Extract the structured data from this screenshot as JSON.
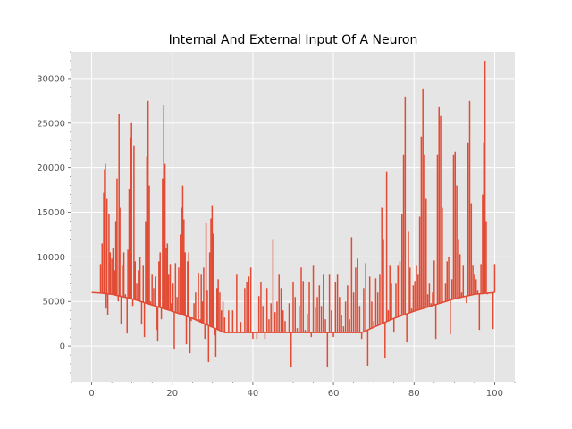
{
  "chart_data": {
    "type": "line",
    "title": "Internal And External Input Of A Neuron",
    "xlabel": "",
    "ylabel": "",
    "xlim": [
      -5,
      105
    ],
    "ylim": [
      -4000,
      33000
    ],
    "xticks": [
      0,
      20,
      40,
      60,
      80,
      100
    ],
    "yticks": [
      0,
      5000,
      10000,
      15000,
      20000,
      25000,
      30000
    ],
    "grid": true,
    "background": "#e5e5e5",
    "series": [
      {
        "color": "#e24a33",
        "baseline": {
          "x": [
            0,
            2,
            5,
            10,
            15,
            20,
            25,
            30,
            33,
            40,
            50,
            60,
            67,
            70,
            75,
            80,
            85,
            90,
            95,
            100
          ],
          "y": [
            6000,
            5950,
            5800,
            5300,
            4600,
            3900,
            3100,
            2100,
            1500,
            1500,
            1500,
            1500,
            1500,
            2100,
            3100,
            3900,
            4600,
            5300,
            5800,
            6000
          ]
        },
        "spikes": [
          [
            2.2,
            9200
          ],
          [
            2.6,
            11500
          ],
          [
            3.0,
            17200
          ],
          [
            3.2,
            19800
          ],
          [
            3.4,
            20500
          ],
          [
            3.6,
            4200
          ],
          [
            3.8,
            16500
          ],
          [
            4.0,
            3500
          ],
          [
            4.3,
            14800
          ],
          [
            4.6,
            10500
          ],
          [
            5.0,
            9800
          ],
          [
            5.3,
            11000
          ],
          [
            5.7,
            8500
          ],
          [
            6.0,
            14000
          ],
          [
            6.3,
            18800
          ],
          [
            6.6,
            5000
          ],
          [
            6.8,
            26000
          ],
          [
            7.0,
            15500
          ],
          [
            7.3,
            2500
          ],
          [
            7.6,
            9000
          ],
          [
            8.0,
            10500
          ],
          [
            8.4,
            5800
          ],
          [
            8.8,
            1400
          ],
          [
            9.0,
            10800
          ],
          [
            9.3,
            17600
          ],
          [
            9.6,
            23400
          ],
          [
            9.9,
            25000
          ],
          [
            10.2,
            4500
          ],
          [
            10.5,
            22500
          ],
          [
            10.8,
            9500
          ],
          [
            11.2,
            7000
          ],
          [
            11.6,
            8500
          ],
          [
            12.0,
            10000
          ],
          [
            12.4,
            2400
          ],
          [
            12.8,
            9000
          ],
          [
            13.1,
            1000
          ],
          [
            13.4,
            14000
          ],
          [
            13.7,
            21200
          ],
          [
            14.0,
            27500
          ],
          [
            14.3,
            18000
          ],
          [
            14.6,
            5000
          ],
          [
            15.0,
            8000
          ],
          [
            15.4,
            6500
          ],
          [
            15.8,
            7800
          ],
          [
            16.1,
            1800
          ],
          [
            16.4,
            500
          ],
          [
            16.7,
            9500
          ],
          [
            17.0,
            10500
          ],
          [
            17.3,
            3000
          ],
          [
            17.6,
            18800
          ],
          [
            17.9,
            27000
          ],
          [
            18.2,
            20500
          ],
          [
            18.5,
            11000
          ],
          [
            18.8,
            11500
          ],
          [
            19.1,
            8000
          ],
          [
            19.5,
            9200
          ],
          [
            19.8,
            4800
          ],
          [
            20.2,
            7000
          ],
          [
            20.5,
            -400
          ],
          [
            20.8,
            9300
          ],
          [
            21.2,
            5500
          ],
          [
            21.6,
            8800
          ],
          [
            22.0,
            12500
          ],
          [
            22.3,
            15500
          ],
          [
            22.6,
            18000
          ],
          [
            22.9,
            14200
          ],
          [
            23.2,
            10500
          ],
          [
            23.5,
            200
          ],
          [
            23.8,
            9500
          ],
          [
            24.1,
            10500
          ],
          [
            24.4,
            -800
          ],
          [
            24.7,
            2800
          ],
          [
            25.0,
            3200
          ],
          [
            25.4,
            4800
          ],
          [
            25.8,
            6000
          ],
          [
            26.1,
            3000
          ],
          [
            26.5,
            8200
          ],
          [
            26.9,
            3000
          ],
          [
            27.2,
            8000
          ],
          [
            27.5,
            5000
          ],
          [
            27.8,
            8800
          ],
          [
            28.1,
            800
          ],
          [
            28.4,
            13800
          ],
          [
            28.7,
            6200
          ],
          [
            29.0,
            -1800
          ],
          [
            29.3,
            10500
          ],
          [
            29.6,
            14300
          ],
          [
            29.9,
            15800
          ],
          [
            30.2,
            12600
          ],
          [
            30.5,
            1200
          ],
          [
            30.8,
            -1200
          ],
          [
            31.1,
            6500
          ],
          [
            31.4,
            7500
          ],
          [
            31.8,
            6000
          ],
          [
            32.2,
            4000
          ],
          [
            32.6,
            5000
          ],
          [
            33.0,
            3200
          ],
          [
            34.0,
            4000
          ],
          [
            35.0,
            4000
          ],
          [
            36.0,
            8000
          ],
          [
            37.0,
            2700
          ],
          [
            38.0,
            6500
          ],
          [
            38.5,
            7200
          ],
          [
            39.0,
            7800
          ],
          [
            39.5,
            8800
          ],
          [
            40.0,
            800
          ],
          [
            40.5,
            1500
          ],
          [
            41.0,
            800
          ],
          [
            41.5,
            5600
          ],
          [
            42.0,
            7200
          ],
          [
            42.5,
            4500
          ],
          [
            43.0,
            800
          ],
          [
            43.5,
            6500
          ],
          [
            44.0,
            3000
          ],
          [
            44.5,
            4800
          ],
          [
            45.0,
            12000
          ],
          [
            45.5,
            3800
          ],
          [
            46.0,
            5000
          ],
          [
            46.5,
            8000
          ],
          [
            47.0,
            6500
          ],
          [
            47.5,
            4000
          ],
          [
            48.0,
            2800
          ],
          [
            48.5,
            1500
          ],
          [
            49.0,
            4800
          ],
          [
            49.5,
            -2400
          ],
          [
            50.0,
            7200
          ],
          [
            50.5,
            5500
          ],
          [
            51.0,
            2000
          ],
          [
            51.5,
            4500
          ],
          [
            52.0,
            8800
          ],
          [
            52.5,
            7300
          ],
          [
            53.0,
            1800
          ],
          [
            53.5,
            3600
          ],
          [
            54.0,
            7200
          ],
          [
            54.5,
            1000
          ],
          [
            55.0,
            9000
          ],
          [
            55.5,
            4300
          ],
          [
            56.0,
            5500
          ],
          [
            56.5,
            6800
          ],
          [
            57.0,
            4500
          ],
          [
            57.5,
            8000
          ],
          [
            58.0,
            3000
          ],
          [
            58.5,
            -2400
          ],
          [
            59.0,
            8000
          ],
          [
            59.5,
            4000
          ],
          [
            60.0,
            1000
          ],
          [
            60.5,
            7200
          ],
          [
            61.0,
            8000
          ],
          [
            61.5,
            5500
          ],
          [
            62.0,
            3500
          ],
          [
            62.5,
            2200
          ],
          [
            63.0,
            5000
          ],
          [
            63.5,
            6800
          ],
          [
            64.0,
            3000
          ],
          [
            64.5,
            12200
          ],
          [
            65.0,
            6000
          ],
          [
            65.5,
            8800
          ],
          [
            66.0,
            9800
          ],
          [
            66.5,
            4500
          ],
          [
            67.0,
            800
          ],
          [
            67.5,
            6500
          ],
          [
            68.0,
            9300
          ],
          [
            68.5,
            -2200
          ],
          [
            69.0,
            7800
          ],
          [
            69.5,
            5000
          ],
          [
            70.0,
            2800
          ],
          [
            70.5,
            7600
          ],
          [
            71.0,
            6000
          ],
          [
            71.5,
            8000
          ],
          [
            72.0,
            15500
          ],
          [
            72.4,
            12000
          ],
          [
            72.8,
            -1400
          ],
          [
            73.2,
            19600
          ],
          [
            73.6,
            4000
          ],
          [
            74.0,
            9000
          ],
          [
            74.4,
            7000
          ],
          [
            75.0,
            1500
          ],
          [
            75.5,
            7000
          ],
          [
            76.0,
            9000
          ],
          [
            76.5,
            9500
          ],
          [
            77.0,
            14800
          ],
          [
            77.4,
            21500
          ],
          [
            77.8,
            28000
          ],
          [
            78.2,
            400
          ],
          [
            78.6,
            12800
          ],
          [
            79.0,
            8800
          ],
          [
            79.4,
            4200
          ],
          [
            79.8,
            6800
          ],
          [
            80.2,
            7300
          ],
          [
            80.6,
            9000
          ],
          [
            81.0,
            8000
          ],
          [
            81.4,
            14500
          ],
          [
            81.8,
            23500
          ],
          [
            82.2,
            28800
          ],
          [
            82.6,
            21500
          ],
          [
            83.0,
            16500
          ],
          [
            83.4,
            5800
          ],
          [
            83.8,
            7000
          ],
          [
            84.2,
            4800
          ],
          [
            84.6,
            6000
          ],
          [
            85.0,
            9600
          ],
          [
            85.4,
            800
          ],
          [
            85.8,
            21500
          ],
          [
            86.2,
            26800
          ],
          [
            86.6,
            25800
          ],
          [
            87.0,
            15500
          ],
          [
            87.4,
            5000
          ],
          [
            87.8,
            7000
          ],
          [
            88.2,
            9500
          ],
          [
            88.6,
            10000
          ],
          [
            89.0,
            1300
          ],
          [
            89.4,
            7500
          ],
          [
            89.8,
            21500
          ],
          [
            90.2,
            21800
          ],
          [
            90.6,
            18000
          ],
          [
            91.0,
            12000
          ],
          [
            91.4,
            10300
          ],
          [
            91.8,
            6000
          ],
          [
            92.2,
            9000
          ],
          [
            92.6,
            5500
          ],
          [
            93.0,
            4800
          ],
          [
            93.4,
            22800
          ],
          [
            93.8,
            27500
          ],
          [
            94.2,
            16000
          ],
          [
            94.6,
            9000
          ],
          [
            95.0,
            8000
          ],
          [
            95.4,
            7500
          ],
          [
            95.8,
            6200
          ],
          [
            96.2,
            1800
          ],
          [
            96.6,
            9200
          ],
          [
            97.0,
            17000
          ],
          [
            97.3,
            22800
          ],
          [
            97.6,
            32000
          ],
          [
            97.9,
            14000
          ],
          [
            98.2,
            5800
          ],
          [
            98.6,
            6000
          ],
          [
            99.0,
            6000
          ],
          [
            99.6,
            1900
          ],
          [
            100.0,
            9200
          ]
        ]
      }
    ]
  }
}
